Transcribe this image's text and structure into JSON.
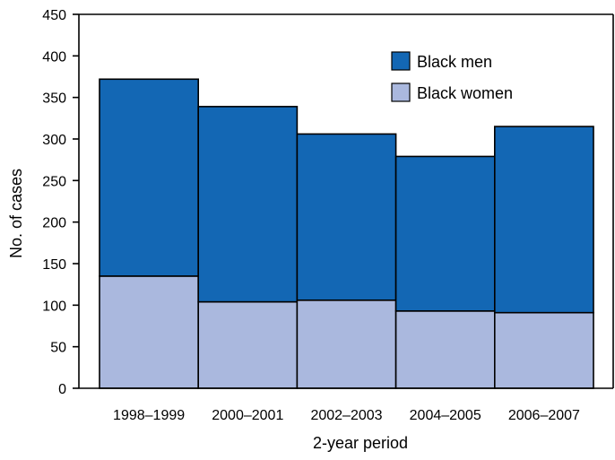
{
  "chart_data": {
    "type": "bar",
    "stacked": true,
    "categories": [
      "1998–1999",
      "2000–2001",
      "2002–2003",
      "2004–2005",
      "2006–2007"
    ],
    "series": [
      {
        "name": "Black women",
        "values": [
          135,
          104,
          106,
          93,
          91
        ],
        "color": "#aab8de"
      },
      {
        "name": "Black men",
        "values": [
          237,
          235,
          200,
          186,
          224
        ],
        "color": "#1367b4"
      }
    ],
    "totals": [
      372,
      339,
      306,
      279,
      315
    ],
    "xlabel": "2-year period",
    "ylabel": "No. of cases",
    "ylim": [
      0,
      450
    ],
    "yticks": [
      0,
      50,
      100,
      150,
      200,
      250,
      300,
      350,
      400,
      450
    ],
    "grid": false,
    "legend": {
      "placement": "top-right",
      "order": [
        "Black men",
        "Black women"
      ]
    }
  }
}
